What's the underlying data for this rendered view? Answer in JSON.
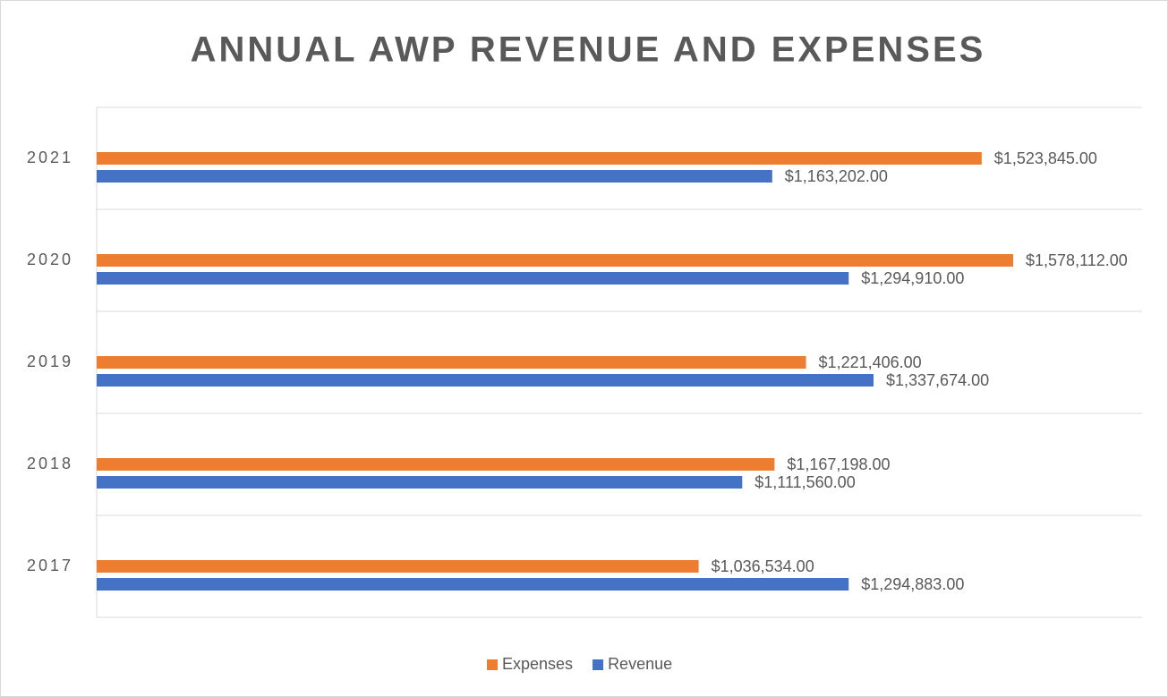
{
  "chart_data": {
    "type": "hbar",
    "title": "ANNUAL AWP REVENUE AND EXPENSES",
    "categories": [
      "2017",
      "2018",
      "2019",
      "2020",
      "2021"
    ],
    "series": [
      {
        "name": "Expenses",
        "color": "#ed7d31",
        "values": [
          1036534,
          1167198,
          1221406,
          1578112,
          1523845
        ],
        "value_labels": [
          "$1,036,534.00",
          "$1,167,198.00",
          "$1,221,406.00",
          "$1,578,112.00",
          "$1,523,845.00"
        ]
      },
      {
        "name": "Revenue",
        "color": "#4472c4",
        "values": [
          1294883,
          1111560,
          1337674,
          1294910,
          1163202
        ],
        "value_labels": [
          "$1,294,883.00",
          "$1,111,560.00",
          "$1,337,674.00",
          "$1,294,910.00",
          "$1,163,202.00"
        ]
      }
    ],
    "xlim": [
      0,
      1800000
    ],
    "grid": true,
    "legend": "bottom"
  }
}
